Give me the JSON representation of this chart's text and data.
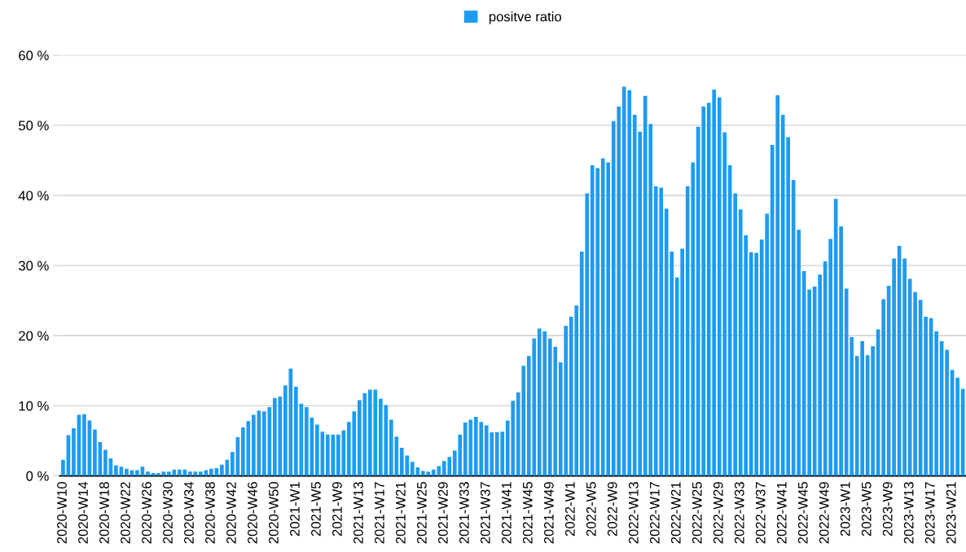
{
  "chart_data": {
    "type": "bar",
    "categories": [
      "2020-W10",
      null,
      null,
      null,
      "2020-W14",
      null,
      null,
      null,
      "2020-W18",
      null,
      null,
      null,
      "2020-W22",
      null,
      null,
      null,
      "2020-W26",
      null,
      null,
      null,
      "2020-W30",
      null,
      null,
      null,
      "2020-W34",
      null,
      null,
      null,
      "2020-W38",
      null,
      null,
      null,
      "2020-W42",
      null,
      null,
      null,
      "2020-W46",
      null,
      null,
      null,
      "2020-W50",
      null,
      null,
      null,
      "2021-W1",
      null,
      null,
      null,
      "2021-W5",
      null,
      null,
      null,
      "2021-W9",
      null,
      null,
      null,
      "2021-W13",
      null,
      null,
      null,
      "2021-W17",
      null,
      null,
      null,
      "2021-W21",
      null,
      null,
      null,
      "2021-W25",
      null,
      null,
      null,
      "2021-W29",
      null,
      null,
      null,
      "2021-W33",
      null,
      null,
      null,
      "2021-W37",
      null,
      null,
      null,
      "2021-W41",
      null,
      null,
      null,
      "2021-W45",
      null,
      null,
      null,
      "2021-W49",
      null,
      null,
      null,
      "2022-W1",
      null,
      null,
      null,
      "2022-W5",
      null,
      null,
      null,
      "2022-W9",
      null,
      null,
      null,
      "2022-W13",
      null,
      null,
      null,
      "2022-W17",
      null,
      null,
      null,
      "2022-W21",
      null,
      null,
      null,
      "2022-W25",
      null,
      null,
      null,
      "2022-W29",
      null,
      null,
      null,
      "2022-W33",
      null,
      null,
      null,
      "2022-W37",
      null,
      null,
      null,
      "2022-W41",
      null,
      null,
      null,
      "2022-W45",
      null,
      null,
      null,
      "2022-W49",
      null,
      null,
      null,
      "2023-W1",
      null,
      null,
      null,
      "2023-W5",
      null,
      null,
      null,
      "2023-W9",
      null,
      null,
      null,
      "2023-W13",
      null,
      null,
      null,
      "2023-W17",
      null,
      null,
      null,
      "2023-W21",
      null,
      null
    ],
    "series": [
      {
        "name": "positve ratio",
        "color": "#1e9bf0",
        "values": [
          2.3,
          5.8,
          6.8,
          8.7,
          8.8,
          7.9,
          6.6,
          4.8,
          3.7,
          2.5,
          1.5,
          1.3,
          1.0,
          0.8,
          0.8,
          1.3,
          0.6,
          0.4,
          0.4,
          0.6,
          0.6,
          0.9,
          0.9,
          0.9,
          0.6,
          0.6,
          0.6,
          0.8,
          1.0,
          1.1,
          1.6,
          2.3,
          3.4,
          5.5,
          6.9,
          7.8,
          8.7,
          9.3,
          9.2,
          9.8,
          11.1,
          11.3,
          12.9,
          15.3,
          12.7,
          10.3,
          9.8,
          8.3,
          7.3,
          6.3,
          5.9,
          5.9,
          5.9,
          6.5,
          7.7,
          9.2,
          10.8,
          11.8,
          12.3,
          12.3,
          11.0,
          10.1,
          8.0,
          5.6,
          4.0,
          2.9,
          2.0,
          1.2,
          0.7,
          0.6,
          0.9,
          1.4,
          2.1,
          2.7,
          3.6,
          5.9,
          7.6,
          8.0,
          8.4,
          7.7,
          7.2,
          6.2,
          6.2,
          6.3,
          7.9,
          10.7,
          11.9,
          15.7,
          17.1,
          19.6,
          21.0,
          20.6,
          19.6,
          18.4,
          16.2,
          21.4,
          22.7,
          24.3,
          32.0,
          40.3,
          44.3,
          43.9,
          45.3,
          44.7,
          50.6,
          52.7,
          55.5,
          55.0,
          51.5,
          49.1,
          54.2,
          50.2,
          41.3,
          41.1,
          38.1,
          32.0,
          28.3,
          32.4,
          41.3,
          44.7,
          49.8,
          52.7,
          53.2,
          55.1,
          54.0,
          49.0,
          44.3,
          40.3,
          38.0,
          34.3,
          31.9,
          31.8,
          33.7,
          37.4,
          47.2,
          54.3,
          51.5,
          48.3,
          42.2,
          35.1,
          29.2,
          26.6,
          27.0,
          28.7,
          30.6,
          33.8,
          39.5,
          35.6,
          26.7,
          19.8,
          17.1,
          19.2,
          17.2,
          18.5,
          20.9,
          25.2,
          27.1,
          31.0,
          32.8,
          31.0,
          28.1,
          26.2,
          25.1,
          22.7,
          22.5,
          20.6,
          19.2,
          18.0,
          15.1,
          14.0,
          12.4
        ]
      }
    ],
    "ylim": [
      0,
      60
    ],
    "yticks": [
      {
        "value": 0,
        "label": "0 %"
      },
      {
        "value": 10,
        "label": "10 %"
      },
      {
        "value": 20,
        "label": "20 %"
      },
      {
        "value": 30,
        "label": "30 %"
      },
      {
        "value": 40,
        "label": "40 %"
      },
      {
        "value": 50,
        "label": "50 %"
      },
      {
        "value": 60,
        "label": "60 %"
      }
    ],
    "grid": "y",
    "legend": "top"
  }
}
